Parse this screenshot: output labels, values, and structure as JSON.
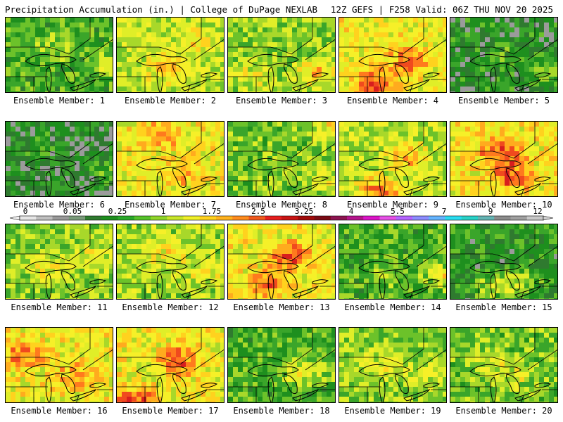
{
  "header": {
    "title": "Precipitation Accumulation (in.) | College of DuPage NEXLAB",
    "run_info": "12Z GEFS | F258 Valid: 06Z THU NOV 20 2025"
  },
  "panels": [
    {
      "label": "Ensemble Member: 1",
      "bias": 0.2,
      "seed": 11,
      "hot": [
        [
          0.45,
          0.35,
          0.5
        ],
        [
          0.95,
          0.6,
          0.7
        ]
      ]
    },
    {
      "label": "Ensemble Member: 2",
      "bias": 0.45,
      "seed": 23,
      "hot": [
        [
          0.45,
          0.6,
          0.8
        ],
        [
          0.7,
          0.3,
          0.5
        ]
      ]
    },
    {
      "label": "Ensemble Member: 3",
      "bias": 0.35,
      "seed": 37,
      "hot": [
        [
          0.8,
          0.7,
          1.0
        ],
        [
          0.2,
          0.75,
          0.6
        ]
      ]
    },
    {
      "label": "Ensemble Member: 4",
      "bias": 0.6,
      "seed": 41,
      "hot": [
        [
          0.3,
          0.85,
          1.2
        ],
        [
          0.6,
          0.55,
          0.9
        ]
      ]
    },
    {
      "label": "Ensemble Member: 5",
      "bias": 0.05,
      "seed": 53,
      "hot": [
        [
          0.85,
          0.7,
          0.6
        ],
        [
          0.5,
          0.5,
          0.4
        ]
      ]
    },
    {
      "label": "Ensemble Member: 6",
      "bias": 0.0,
      "seed": 61,
      "hot": [
        [
          0.9,
          0.6,
          0.5
        ],
        [
          0.3,
          0.3,
          0.3
        ]
      ]
    },
    {
      "label": "Ensemble Member: 7",
      "bias": 0.6,
      "seed": 71,
      "hot": [
        [
          0.35,
          0.15,
          0.7
        ],
        [
          0.6,
          0.6,
          0.7
        ]
      ]
    },
    {
      "label": "Ensemble Member: 8",
      "bias": 0.3,
      "seed": 83,
      "hot": [
        [
          0.85,
          0.7,
          0.7
        ],
        [
          0.95,
          0.05,
          0.9
        ]
      ]
    },
    {
      "label": "Ensemble Member: 9",
      "bias": 0.45,
      "seed": 97,
      "hot": [
        [
          0.35,
          0.9,
          1.4
        ],
        [
          0.6,
          0.45,
          0.8
        ]
      ]
    },
    {
      "label": "Ensemble Member: 10",
      "bias": 0.65,
      "seed": 101,
      "hot": [
        [
          0.45,
          0.4,
          1.1
        ],
        [
          0.55,
          0.7,
          0.9
        ]
      ]
    },
    {
      "label": "Ensemble Member: 11",
      "bias": 0.35,
      "seed": 113,
      "hot": [
        [
          0.4,
          0.55,
          0.6
        ],
        [
          0.75,
          0.4,
          0.5
        ]
      ]
    },
    {
      "label": "Ensemble Member: 12",
      "bias": 0.4,
      "seed": 127,
      "hot": [
        [
          0.4,
          0.35,
          0.6
        ],
        [
          0.8,
          0.55,
          0.5
        ]
      ]
    },
    {
      "label": "Ensemble Member: 13",
      "bias": 0.6,
      "seed": 131,
      "hot": [
        [
          0.55,
          0.4,
          1.1
        ],
        [
          0.35,
          0.75,
          0.8
        ]
      ]
    },
    {
      "label": "Ensemble Member: 14",
      "bias": 0.2,
      "seed": 149,
      "hot": [
        [
          0.95,
          0.65,
          0.9
        ],
        [
          0.4,
          0.6,
          0.4
        ]
      ]
    },
    {
      "label": "Ensemble Member: 15",
      "bias": 0.1,
      "seed": 157,
      "hot": [
        [
          0.4,
          0.8,
          0.8
        ],
        [
          0.6,
          0.7,
          0.7
        ]
      ]
    },
    {
      "label": "Ensemble Member: 16",
      "bias": 0.6,
      "seed": 163,
      "hot": [
        [
          0.15,
          0.3,
          0.9
        ],
        [
          0.6,
          0.6,
          0.7
        ]
      ]
    },
    {
      "label": "Ensemble Member: 17",
      "bias": 0.6,
      "seed": 173,
      "hot": [
        [
          0.55,
          0.4,
          1.1
        ],
        [
          0.15,
          0.95,
          1.3
        ]
      ]
    },
    {
      "label": "Ensemble Member: 18",
      "bias": 0.2,
      "seed": 181,
      "hot": [
        [
          0.6,
          0.6,
          0.6
        ],
        [
          0.8,
          0.5,
          0.6
        ]
      ]
    },
    {
      "label": "Ensemble Member: 19",
      "bias": 0.35,
      "seed": 191,
      "hot": [
        [
          0.4,
          0.45,
          0.6
        ],
        [
          0.75,
          0.6,
          0.5
        ]
      ]
    },
    {
      "label": "Ensemble Member: 20",
      "bias": 0.3,
      "seed": 197,
      "hot": [
        [
          0.55,
          0.6,
          0.6
        ],
        [
          0.3,
          0.4,
          0.5
        ]
      ]
    }
  ],
  "colorbar": {
    "labels": [
      "0",
      "0.05",
      "0.25",
      "1",
      "1.75",
      "2.5",
      "3.25",
      "4",
      "5.5",
      "7",
      "9",
      "12"
    ],
    "colors": [
      "#e6e6e6",
      "#bfbfbf",
      "#999999",
      "#7a9a7a",
      "#2f7a2f",
      "#1e8f1e",
      "#2aa82a",
      "#55c22a",
      "#8fd52a",
      "#c8e62a",
      "#f0f028",
      "#ffd21e",
      "#ffb21e",
      "#ff8c1e",
      "#f05a1e",
      "#e61e1e",
      "#c81414",
      "#a00a0a",
      "#7a0a14",
      "#8c1450",
      "#b4148c",
      "#dc14c8",
      "#e650e6",
      "#b464ff",
      "#8c8cff",
      "#64b4ff",
      "#28dcf0",
      "#28d2c8",
      "#64b4b4",
      "#8c8c8c",
      "#a0a0a0",
      "#c8c8c8"
    ]
  }
}
